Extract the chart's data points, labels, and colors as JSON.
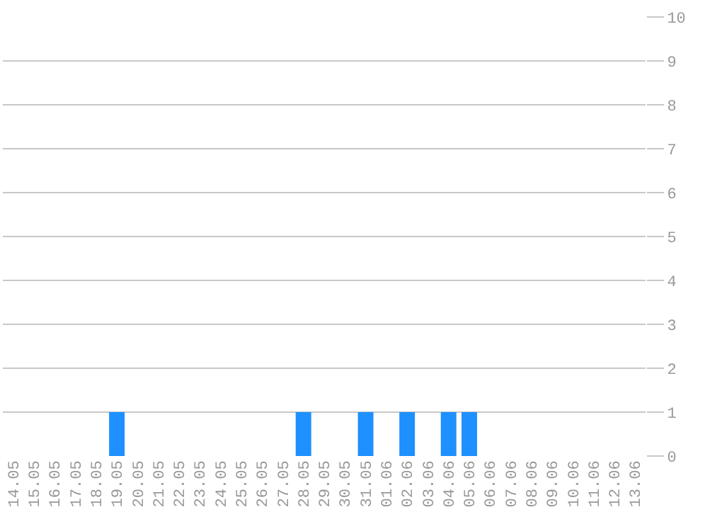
{
  "chart_data": {
    "type": "bar",
    "categories": [
      "14.05",
      "15.05",
      "16.05",
      "17.05",
      "18.05",
      "19.05",
      "20.05",
      "21.05",
      "22.05",
      "23.05",
      "24.05",
      "25.05",
      "26.05",
      "27.05",
      "28.05",
      "29.05",
      "30.05",
      "31.05",
      "01.06",
      "02.06",
      "03.06",
      "04.06",
      "05.06",
      "06.06",
      "07.06",
      "08.06",
      "09.06",
      "10.06",
      "11.06",
      "12.06",
      "13.06"
    ],
    "values": [
      0,
      0,
      0,
      0,
      0,
      1,
      0,
      0,
      0,
      0,
      0,
      0,
      0,
      0,
      1,
      0,
      0,
      1,
      0,
      1,
      0,
      1,
      1,
      0,
      0,
      0,
      0,
      0,
      0,
      0,
      0
    ],
    "color": "#1e90ff",
    "ylim": [
      0,
      10
    ],
    "yticks": [
      0,
      1,
      2,
      3,
      4,
      5,
      6,
      7,
      8,
      9,
      10
    ],
    "grid": "y"
  }
}
